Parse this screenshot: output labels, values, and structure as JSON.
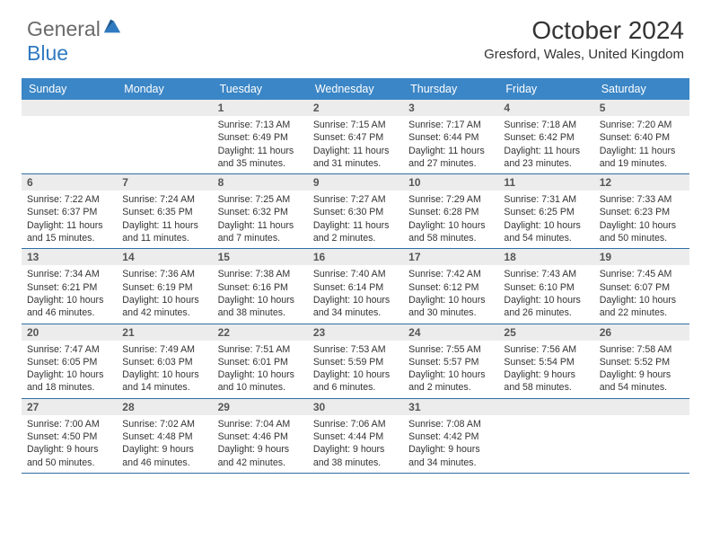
{
  "logo": {
    "text1": "General",
    "text2": "Blue"
  },
  "title": "October 2024",
  "location": "Gresford, Wales, United Kingdom",
  "headerColor": "#3b86c6",
  "borderColor": "#2f6fa6",
  "dayLabels": [
    "Sunday",
    "Monday",
    "Tuesday",
    "Wednesday",
    "Thursday",
    "Friday",
    "Saturday"
  ],
  "firstDayOffset": 2,
  "days": [
    {
      "n": 1,
      "sr": "7:13 AM",
      "ss": "6:49 PM",
      "dl": "11 hours and 35 minutes."
    },
    {
      "n": 2,
      "sr": "7:15 AM",
      "ss": "6:47 PM",
      "dl": "11 hours and 31 minutes."
    },
    {
      "n": 3,
      "sr": "7:17 AM",
      "ss": "6:44 PM",
      "dl": "11 hours and 27 minutes."
    },
    {
      "n": 4,
      "sr": "7:18 AM",
      "ss": "6:42 PM",
      "dl": "11 hours and 23 minutes."
    },
    {
      "n": 5,
      "sr": "7:20 AM",
      "ss": "6:40 PM",
      "dl": "11 hours and 19 minutes."
    },
    {
      "n": 6,
      "sr": "7:22 AM",
      "ss": "6:37 PM",
      "dl": "11 hours and 15 minutes."
    },
    {
      "n": 7,
      "sr": "7:24 AM",
      "ss": "6:35 PM",
      "dl": "11 hours and 11 minutes."
    },
    {
      "n": 8,
      "sr": "7:25 AM",
      "ss": "6:32 PM",
      "dl": "11 hours and 7 minutes."
    },
    {
      "n": 9,
      "sr": "7:27 AM",
      "ss": "6:30 PM",
      "dl": "11 hours and 2 minutes."
    },
    {
      "n": 10,
      "sr": "7:29 AM",
      "ss": "6:28 PM",
      "dl": "10 hours and 58 minutes."
    },
    {
      "n": 11,
      "sr": "7:31 AM",
      "ss": "6:25 PM",
      "dl": "10 hours and 54 minutes."
    },
    {
      "n": 12,
      "sr": "7:33 AM",
      "ss": "6:23 PM",
      "dl": "10 hours and 50 minutes."
    },
    {
      "n": 13,
      "sr": "7:34 AM",
      "ss": "6:21 PM",
      "dl": "10 hours and 46 minutes."
    },
    {
      "n": 14,
      "sr": "7:36 AM",
      "ss": "6:19 PM",
      "dl": "10 hours and 42 minutes."
    },
    {
      "n": 15,
      "sr": "7:38 AM",
      "ss": "6:16 PM",
      "dl": "10 hours and 38 minutes."
    },
    {
      "n": 16,
      "sr": "7:40 AM",
      "ss": "6:14 PM",
      "dl": "10 hours and 34 minutes."
    },
    {
      "n": 17,
      "sr": "7:42 AM",
      "ss": "6:12 PM",
      "dl": "10 hours and 30 minutes."
    },
    {
      "n": 18,
      "sr": "7:43 AM",
      "ss": "6:10 PM",
      "dl": "10 hours and 26 minutes."
    },
    {
      "n": 19,
      "sr": "7:45 AM",
      "ss": "6:07 PM",
      "dl": "10 hours and 22 minutes."
    },
    {
      "n": 20,
      "sr": "7:47 AM",
      "ss": "6:05 PM",
      "dl": "10 hours and 18 minutes."
    },
    {
      "n": 21,
      "sr": "7:49 AM",
      "ss": "6:03 PM",
      "dl": "10 hours and 14 minutes."
    },
    {
      "n": 22,
      "sr": "7:51 AM",
      "ss": "6:01 PM",
      "dl": "10 hours and 10 minutes."
    },
    {
      "n": 23,
      "sr": "7:53 AM",
      "ss": "5:59 PM",
      "dl": "10 hours and 6 minutes."
    },
    {
      "n": 24,
      "sr": "7:55 AM",
      "ss": "5:57 PM",
      "dl": "10 hours and 2 minutes."
    },
    {
      "n": 25,
      "sr": "7:56 AM",
      "ss": "5:54 PM",
      "dl": "9 hours and 58 minutes."
    },
    {
      "n": 26,
      "sr": "7:58 AM",
      "ss": "5:52 PM",
      "dl": "9 hours and 54 minutes."
    },
    {
      "n": 27,
      "sr": "7:00 AM",
      "ss": "4:50 PM",
      "dl": "9 hours and 50 minutes."
    },
    {
      "n": 28,
      "sr": "7:02 AM",
      "ss": "4:48 PM",
      "dl": "9 hours and 46 minutes."
    },
    {
      "n": 29,
      "sr": "7:04 AM",
      "ss": "4:46 PM",
      "dl": "9 hours and 42 minutes."
    },
    {
      "n": 30,
      "sr": "7:06 AM",
      "ss": "4:44 PM",
      "dl": "9 hours and 38 minutes."
    },
    {
      "n": 31,
      "sr": "7:08 AM",
      "ss": "4:42 PM",
      "dl": "9 hours and 34 minutes."
    }
  ],
  "labels": {
    "sunrise": "Sunrise:",
    "sunset": "Sunset:",
    "daylight": "Daylight:"
  }
}
